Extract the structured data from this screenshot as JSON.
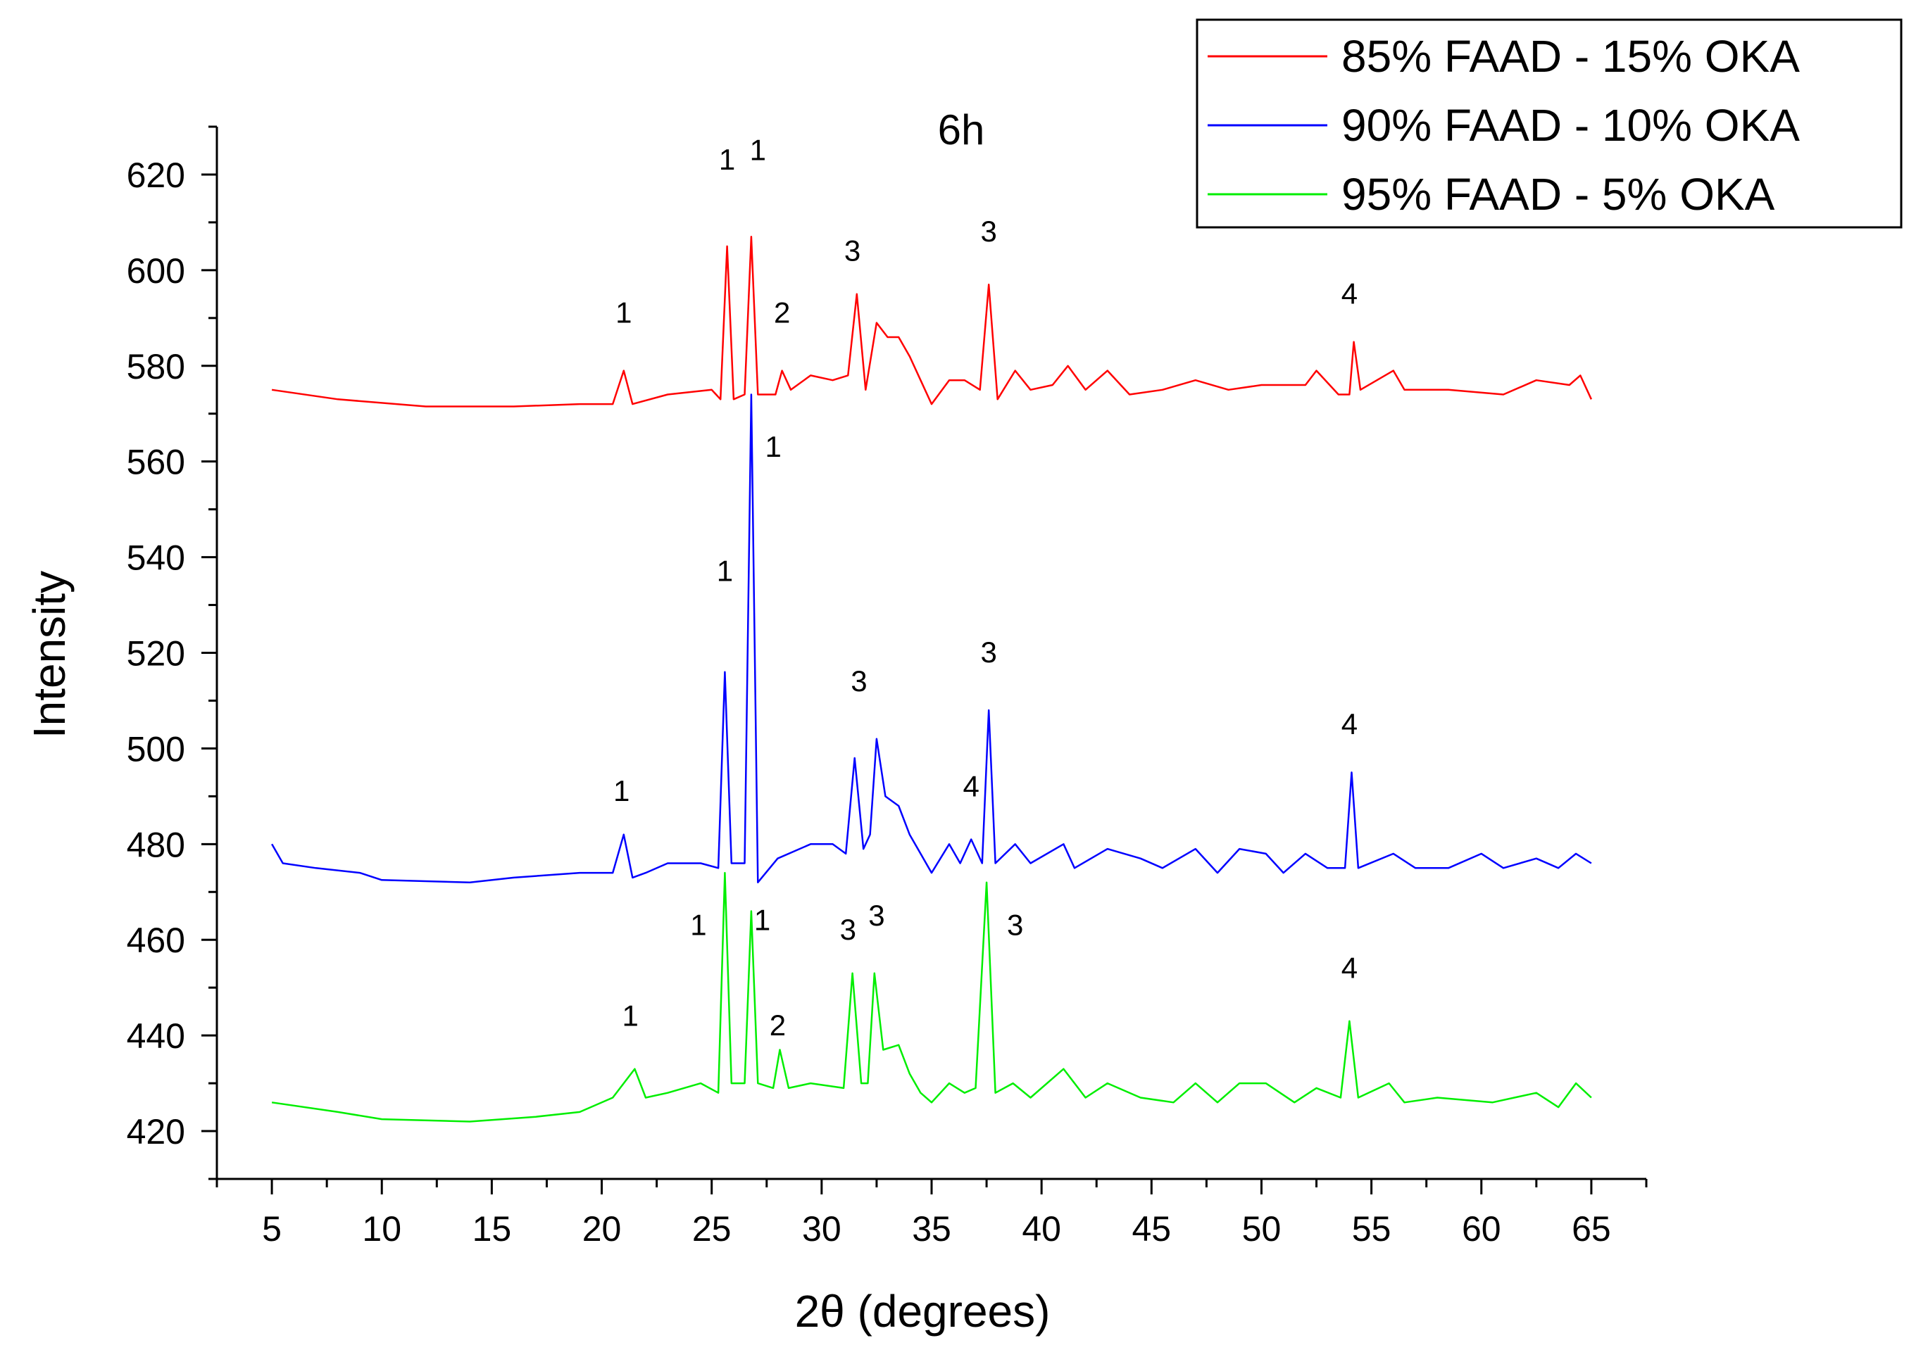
{
  "chart_data": {
    "type": "line",
    "title": "6h",
    "xlabel": "2θ (degrees)",
    "ylabel": "Intensity",
    "xlim": [
      2.5,
      67.5
    ],
    "ylim": [
      410,
      630
    ],
    "x_major_ticks": [
      5,
      10,
      15,
      20,
      25,
      30,
      35,
      40,
      45,
      50,
      55,
      60,
      65
    ],
    "x_minor_ticks": [
      2.5,
      7.5,
      12.5,
      17.5,
      22.5,
      27.5,
      32.5,
      37.5,
      42.5,
      47.5,
      52.5,
      57.5,
      62.5,
      67.5
    ],
    "y_major_ticks": [
      420,
      440,
      460,
      480,
      500,
      520,
      540,
      560,
      580,
      600,
      620
    ],
    "y_minor_ticks": [
      410,
      430,
      450,
      470,
      490,
      510,
      530,
      550,
      570,
      590,
      610,
      630
    ],
    "grid": false,
    "legend_position": "top-right",
    "series": [
      {
        "name": "85% FAAD - 15% OKA",
        "color": "#ff0000",
        "points": [
          [
            5,
            575
          ],
          [
            8,
            573
          ],
          [
            12,
            571.5
          ],
          [
            16,
            571.5
          ],
          [
            19,
            572
          ],
          [
            20.5,
            572
          ],
          [
            21,
            579
          ],
          [
            21.4,
            572
          ],
          [
            23,
            574
          ],
          [
            25,
            575
          ],
          [
            25.4,
            573
          ],
          [
            25.7,
            605
          ],
          [
            26.0,
            573
          ],
          [
            26.5,
            574
          ],
          [
            26.8,
            607
          ],
          [
            27.1,
            574
          ],
          [
            27.9,
            574
          ],
          [
            28.2,
            579
          ],
          [
            28.6,
            575
          ],
          [
            29.5,
            578
          ],
          [
            30.5,
            577
          ],
          [
            31.2,
            578
          ],
          [
            31.6,
            595
          ],
          [
            32.0,
            575
          ],
          [
            32.5,
            589
          ],
          [
            33.0,
            586
          ],
          [
            33.5,
            586
          ],
          [
            34.0,
            582
          ],
          [
            34.5,
            577
          ],
          [
            35.0,
            572
          ],
          [
            35.8,
            577
          ],
          [
            36.5,
            577
          ],
          [
            37.2,
            575
          ],
          [
            37.6,
            597
          ],
          [
            38.0,
            573
          ],
          [
            38.8,
            579
          ],
          [
            39.5,
            575
          ],
          [
            40.5,
            576
          ],
          [
            41.2,
            580
          ],
          [
            42.0,
            575
          ],
          [
            43.0,
            579
          ],
          [
            44.0,
            574
          ],
          [
            45.5,
            575
          ],
          [
            47.0,
            577
          ],
          [
            48.5,
            575
          ],
          [
            50.0,
            576
          ],
          [
            52.0,
            576
          ],
          [
            52.5,
            579
          ],
          [
            53.5,
            574
          ],
          [
            54.0,
            574
          ],
          [
            54.2,
            585
          ],
          [
            54.5,
            575
          ],
          [
            56.0,
            579
          ],
          [
            56.5,
            575
          ],
          [
            58.5,
            575
          ],
          [
            61.0,
            574
          ],
          [
            62.5,
            577
          ],
          [
            64.0,
            576
          ],
          [
            64.5,
            578
          ],
          [
            65.0,
            573
          ]
        ],
        "peak_labels": [
          {
            "text": "1",
            "x": 21.0,
            "y": 589
          },
          {
            "text": "1",
            "x": 25.7,
            "y": 621
          },
          {
            "text": "1",
            "x": 27.1,
            "y": 623
          },
          {
            "text": "2",
            "x": 28.2,
            "y": 589
          },
          {
            "text": "3",
            "x": 31.4,
            "y": 602
          },
          {
            "text": "3",
            "x": 37.6,
            "y": 606
          },
          {
            "text": "4",
            "x": 54.0,
            "y": 593
          }
        ]
      },
      {
        "name": "90% FAAD - 10% OKA",
        "color": "#0000ff",
        "points": [
          [
            5,
            480
          ],
          [
            5.5,
            476
          ],
          [
            7,
            475
          ],
          [
            9,
            474
          ],
          [
            10,
            472.5
          ],
          [
            14,
            472
          ],
          [
            16,
            473
          ],
          [
            19,
            474
          ],
          [
            20.5,
            474
          ],
          [
            21.0,
            482
          ],
          [
            21.4,
            473
          ],
          [
            22,
            474
          ],
          [
            23,
            476
          ],
          [
            24.5,
            476
          ],
          [
            25.3,
            475
          ],
          [
            25.6,
            516
          ],
          [
            25.9,
            476
          ],
          [
            26.5,
            476
          ],
          [
            26.8,
            574
          ],
          [
            27.1,
            472
          ],
          [
            28,
            477
          ],
          [
            29.5,
            480
          ],
          [
            30.5,
            480
          ],
          [
            31.1,
            478
          ],
          [
            31.5,
            498
          ],
          [
            31.9,
            479
          ],
          [
            32.2,
            482
          ],
          [
            32.5,
            502
          ],
          [
            32.9,
            490
          ],
          [
            33.5,
            488
          ],
          [
            34.0,
            482
          ],
          [
            34.5,
            478
          ],
          [
            35.0,
            474
          ],
          [
            35.8,
            480
          ],
          [
            36.3,
            476
          ],
          [
            36.8,
            481
          ],
          [
            37.3,
            476
          ],
          [
            37.6,
            508
          ],
          [
            37.9,
            476
          ],
          [
            38.8,
            480
          ],
          [
            39.5,
            476
          ],
          [
            41.0,
            480
          ],
          [
            41.5,
            475
          ],
          [
            43.0,
            479
          ],
          [
            44.5,
            477
          ],
          [
            45.5,
            475
          ],
          [
            47.0,
            479
          ],
          [
            48.0,
            474
          ],
          [
            49.0,
            479
          ],
          [
            50.2,
            478
          ],
          [
            51.0,
            474
          ],
          [
            52.0,
            478
          ],
          [
            53.0,
            475
          ],
          [
            53.8,
            475
          ],
          [
            54.1,
            495
          ],
          [
            54.4,
            475
          ],
          [
            56.0,
            478
          ],
          [
            57.0,
            475
          ],
          [
            58.5,
            475
          ],
          [
            60.0,
            478
          ],
          [
            61.0,
            475
          ],
          [
            62.5,
            477
          ],
          [
            63.5,
            475
          ],
          [
            64.3,
            478
          ],
          [
            65.0,
            476
          ]
        ],
        "peak_labels": [
          {
            "text": "1",
            "x": 20.9,
            "y": 489
          },
          {
            "text": "1",
            "x": 25.6,
            "y": 535
          },
          {
            "text": "1",
            "x": 27.8,
            "y": 561
          },
          {
            "text": "3",
            "x": 31.7,
            "y": 512
          },
          {
            "text": "4",
            "x": 36.8,
            "y": 490
          },
          {
            "text": "3",
            "x": 37.6,
            "y": 518
          },
          {
            "text": "4",
            "x": 54.0,
            "y": 503
          }
        ]
      },
      {
        "name": "95% FAAD - 5% OKA",
        "color": "#00ee00",
        "points": [
          [
            5,
            426
          ],
          [
            8,
            424
          ],
          [
            10,
            422.5
          ],
          [
            14,
            422
          ],
          [
            17,
            423
          ],
          [
            19,
            424
          ],
          [
            20.5,
            427
          ],
          [
            21.0,
            430
          ],
          [
            21.5,
            433
          ],
          [
            22,
            427
          ],
          [
            23,
            428
          ],
          [
            24.5,
            430
          ],
          [
            25.3,
            428
          ],
          [
            25.6,
            474
          ],
          [
            25.9,
            430
          ],
          [
            26.5,
            430
          ],
          [
            26.8,
            466
          ],
          [
            27.1,
            430
          ],
          [
            27.8,
            429
          ],
          [
            28.1,
            437
          ],
          [
            28.5,
            429
          ],
          [
            29.5,
            430
          ],
          [
            31.0,
            429
          ],
          [
            31.4,
            453
          ],
          [
            31.8,
            430
          ],
          [
            32.1,
            430
          ],
          [
            32.4,
            453
          ],
          [
            32.8,
            437
          ],
          [
            33.5,
            438
          ],
          [
            34.0,
            432
          ],
          [
            34.5,
            428
          ],
          [
            35.0,
            426
          ],
          [
            35.8,
            430
          ],
          [
            36.5,
            428
          ],
          [
            37.0,
            429
          ],
          [
            37.5,
            472
          ],
          [
            37.9,
            428
          ],
          [
            38.7,
            430
          ],
          [
            39.5,
            427
          ],
          [
            41.0,
            433
          ],
          [
            42.0,
            427
          ],
          [
            43.0,
            430
          ],
          [
            44.5,
            427
          ],
          [
            46.0,
            426
          ],
          [
            47.0,
            430
          ],
          [
            48.0,
            426
          ],
          [
            49.0,
            430
          ],
          [
            50.2,
            430
          ],
          [
            51.5,
            426
          ],
          [
            52.5,
            429
          ],
          [
            53.6,
            427
          ],
          [
            54.0,
            443
          ],
          [
            54.4,
            427
          ],
          [
            55.8,
            430
          ],
          [
            56.5,
            426
          ],
          [
            58.0,
            427
          ],
          [
            60.5,
            426
          ],
          [
            62.5,
            428
          ],
          [
            63.5,
            425
          ],
          [
            64.3,
            430
          ],
          [
            65.0,
            427
          ]
        ],
        "peak_labels": [
          {
            "text": "1",
            "x": 21.3,
            "y": 442
          },
          {
            "text": "1",
            "x": 24.4,
            "y": 461
          },
          {
            "text": "1",
            "x": 27.3,
            "y": 462
          },
          {
            "text": "2",
            "x": 28.0,
            "y": 440
          },
          {
            "text": "3",
            "x": 31.2,
            "y": 460
          },
          {
            "text": "3",
            "x": 32.5,
            "y": 463
          },
          {
            "text": "3",
            "x": 38.8,
            "y": 461
          },
          {
            "text": "4",
            "x": 54.0,
            "y": 452
          }
        ]
      }
    ]
  }
}
